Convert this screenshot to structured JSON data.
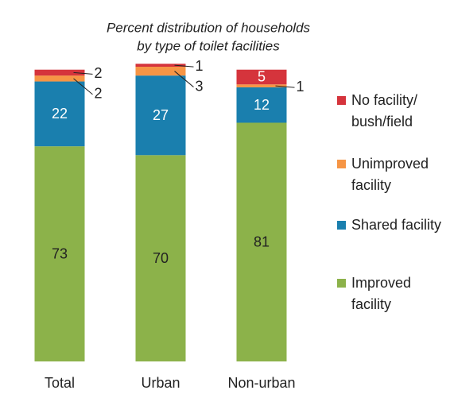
{
  "chart_data": {
    "type": "stacked-bar",
    "title": [
      "Percent distribution of households",
      "by type of toilet facilities"
    ],
    "categories": [
      "Total",
      "Urban",
      "Non-urban"
    ],
    "ylim": [
      0,
      100
    ],
    "series": [
      {
        "name": [
          "Improved",
          "facility"
        ],
        "color": "#8cb24a",
        "values": [
          73,
          70,
          81
        ]
      },
      {
        "name": [
          "Shared facility"
        ],
        "color": "#1a7fae",
        "values": [
          22,
          27,
          12
        ]
      },
      {
        "name": [
          "Unimproved",
          "facility"
        ],
        "color": "#f69545",
        "values": [
          2,
          3,
          1
        ]
      },
      {
        "name": [
          "No facility/",
          "bush/field"
        ],
        "color": "#d5343c",
        "values": [
          2,
          1,
          5
        ]
      }
    ]
  }
}
